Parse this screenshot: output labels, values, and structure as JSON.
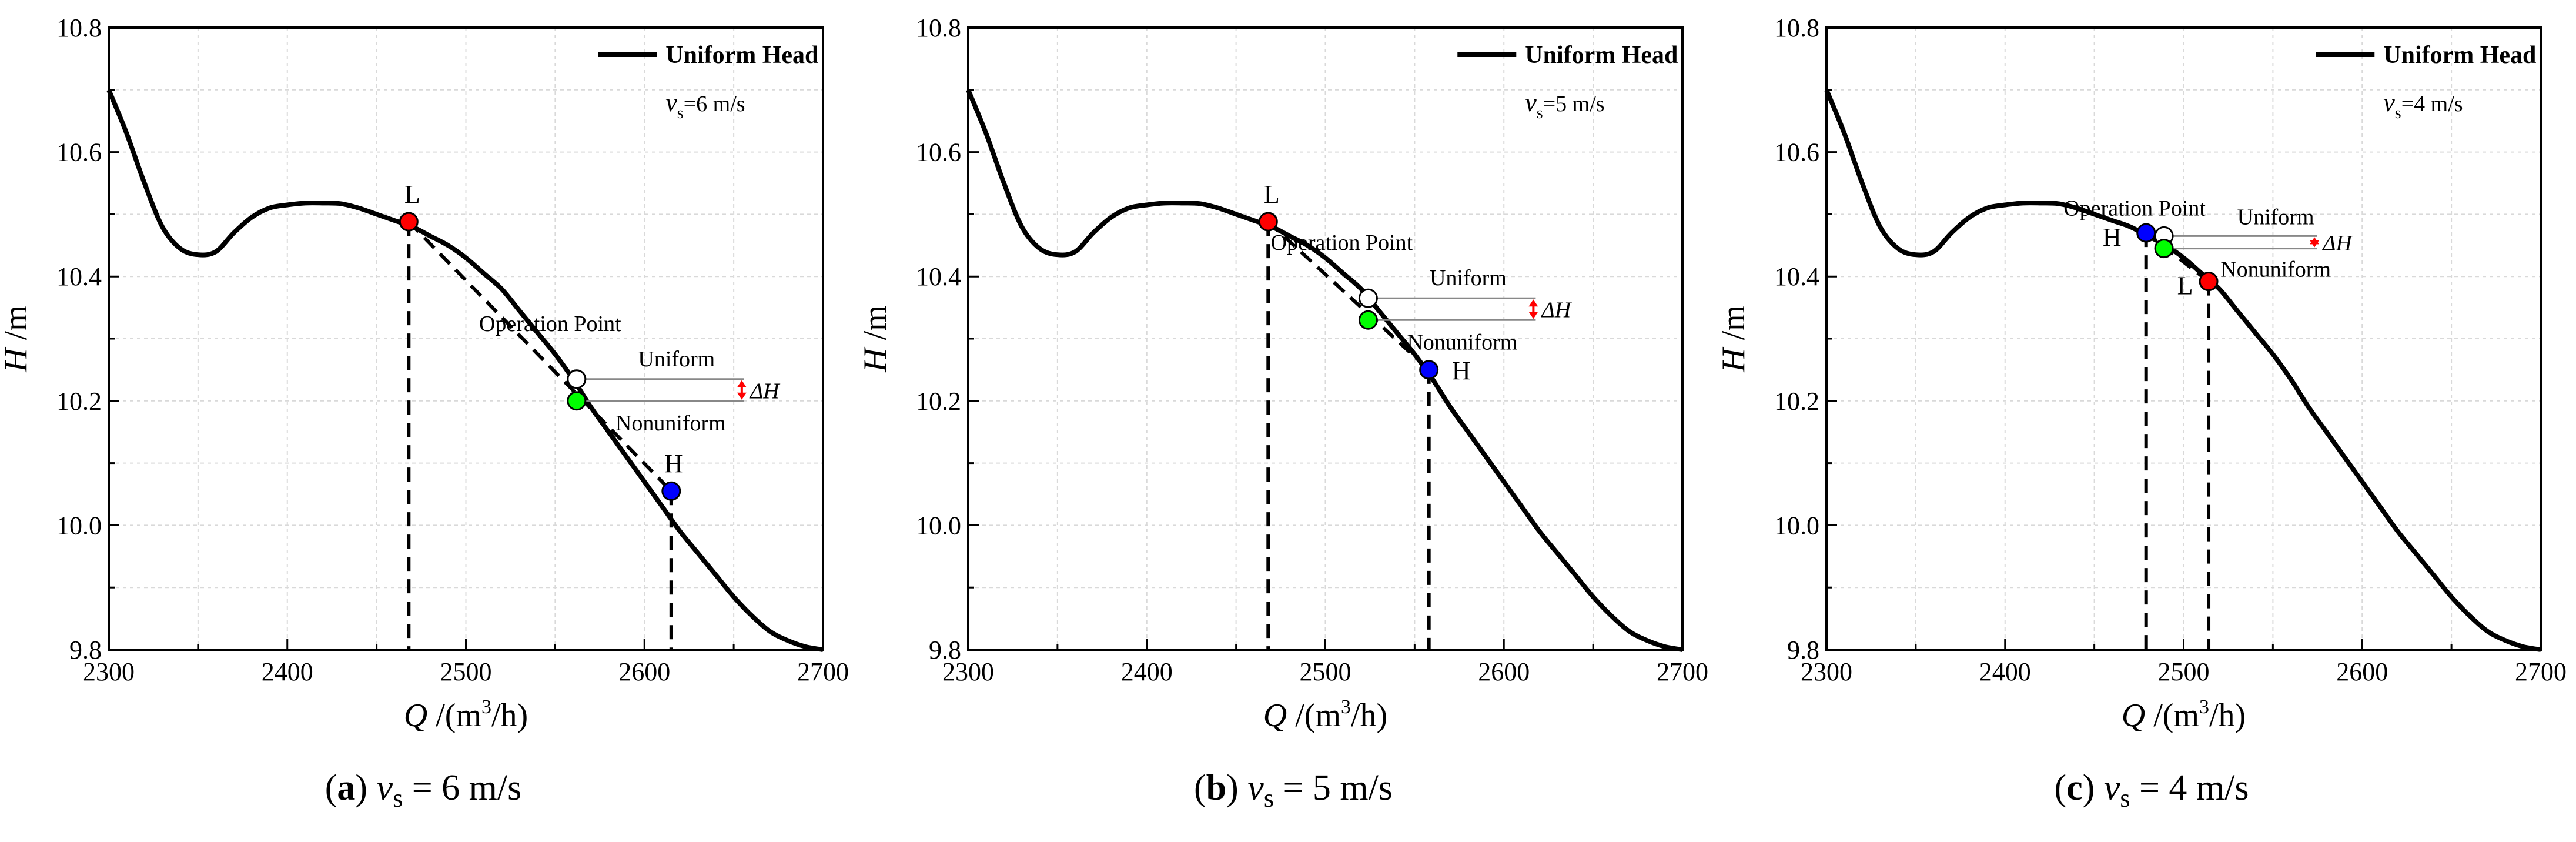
{
  "chart_data": [
    {
      "type": "line",
      "panel": "(a)",
      "title": "",
      "xlabel_main": "Q",
      "xlabel_unit_a": " /(m",
      "xlabel_unit_exp": "3",
      "xlabel_unit_b": "/h)",
      "ylabel_main": "H",
      "ylabel_unit": " /m",
      "xlim": [
        2300,
        2700
      ],
      "ylim": [
        9.8,
        10.8
      ],
      "xticks": [
        2300,
        2400,
        2500,
        2600,
        2700
      ],
      "yticks": [
        9.8,
        10.0,
        10.2,
        10.4,
        10.6,
        10.8
      ],
      "ytick_labels": [
        "9.8",
        "10.0",
        "10.2",
        "10.4",
        "10.6",
        "10.8"
      ],
      "grid": true,
      "legend": {
        "label": "Uniform Head",
        "position": "top-right"
      },
      "speed_label": {
        "v": "v",
        "sub": "s",
        "rest": "=6 m/s"
      },
      "series": [
        {
          "name": "Uniform Head",
          "x": [
            2300,
            2310,
            2320,
            2330,
            2340,
            2350,
            2360,
            2370,
            2380,
            2390,
            2400,
            2410,
            2420,
            2430,
            2440,
            2450,
            2460,
            2470,
            2480,
            2490,
            2500,
            2510,
            2520,
            2530,
            2540,
            2550,
            2560,
            2570,
            2580,
            2590,
            2600,
            2610,
            2620,
            2630,
            2640,
            2650,
            2660,
            2670,
            2680,
            2690,
            2700
          ],
          "y": [
            10.7,
            10.63,
            10.55,
            10.48,
            10.445,
            10.435,
            10.44,
            10.47,
            10.495,
            10.51,
            10.515,
            10.518,
            10.518,
            10.517,
            10.51,
            10.5,
            10.49,
            10.48,
            10.465,
            10.45,
            10.43,
            10.405,
            10.38,
            10.345,
            10.31,
            10.275,
            10.235,
            10.19,
            10.15,
            10.11,
            10.07,
            10.03,
            9.99,
            9.955,
            9.92,
            9.885,
            9.855,
            9.83,
            9.815,
            9.805,
            9.8
          ]
        }
      ],
      "points": [
        {
          "label": "L",
          "x": 2468,
          "y": 10.488,
          "color": "#ff0000"
        },
        {
          "label": "H",
          "x": 2615,
          "y": 10.055,
          "color": "#0000ff"
        },
        {
          "label": "Operation Point",
          "x": 2562,
          "y": 10.235,
          "color": "#ffffff"
        },
        {
          "label": "",
          "x": 2562,
          "y": 10.2,
          "color": "#00ff00"
        }
      ],
      "annotations": {
        "operation_point": "Operation Point",
        "uniform": "Uniform",
        "nonuniform": "Nonuniform",
        "delta_h": "ΔH"
      }
    },
    {
      "type": "line",
      "panel": "(b)",
      "title": "",
      "xlabel_main": "Q",
      "xlabel_unit_a": " /(m",
      "xlabel_unit_exp": "3",
      "xlabel_unit_b": "/h)",
      "ylabel_main": "H",
      "ylabel_unit": " /m",
      "xlim": [
        2300,
        2700
      ],
      "ylim": [
        9.8,
        10.8
      ],
      "xticks": [
        2300,
        2400,
        2500,
        2600,
        2700
      ],
      "yticks": [
        9.8,
        10.0,
        10.2,
        10.4,
        10.6,
        10.8
      ],
      "ytick_labels": [
        "9.8",
        "10.0",
        "10.2",
        "10.4",
        "10.6",
        "10.8"
      ],
      "grid": true,
      "legend": {
        "label": "Uniform Head",
        "position": "top-right"
      },
      "speed_label": {
        "v": "v",
        "sub": "s",
        "rest": "=5 m/s"
      },
      "series": [
        {
          "name": "Uniform Head",
          "x": [
            2300,
            2310,
            2320,
            2330,
            2340,
            2350,
            2360,
            2370,
            2380,
            2390,
            2400,
            2410,
            2420,
            2430,
            2440,
            2450,
            2460,
            2470,
            2480,
            2490,
            2500,
            2510,
            2520,
            2530,
            2540,
            2550,
            2560,
            2570,
            2580,
            2590,
            2600,
            2610,
            2620,
            2630,
            2640,
            2650,
            2660,
            2670,
            2680,
            2690,
            2700
          ],
          "y": [
            10.7,
            10.63,
            10.55,
            10.48,
            10.445,
            10.435,
            10.44,
            10.47,
            10.495,
            10.51,
            10.515,
            10.518,
            10.518,
            10.517,
            10.51,
            10.5,
            10.49,
            10.48,
            10.465,
            10.45,
            10.43,
            10.405,
            10.38,
            10.345,
            10.31,
            10.275,
            10.235,
            10.19,
            10.15,
            10.11,
            10.07,
            10.03,
            9.99,
            9.955,
            9.92,
            9.885,
            9.855,
            9.83,
            9.815,
            9.805,
            9.8
          ]
        }
      ],
      "points": [
        {
          "label": "L",
          "x": 2468,
          "y": 10.488,
          "color": "#ff0000"
        },
        {
          "label": "H",
          "x": 2558,
          "y": 10.25,
          "color": "#0000ff"
        },
        {
          "label": "Operation Point",
          "x": 2524,
          "y": 10.365,
          "color": "#ffffff"
        },
        {
          "label": "",
          "x": 2524,
          "y": 10.33,
          "color": "#00ff00"
        }
      ],
      "annotations": {
        "operation_point": "Operation Point",
        "uniform": "Uniform",
        "nonuniform": "Nonuniform",
        "delta_h": "ΔH"
      }
    },
    {
      "type": "line",
      "panel": "(c)",
      "title": "",
      "xlabel_main": "Q",
      "xlabel_unit_a": " /(m",
      "xlabel_unit_exp": "3",
      "xlabel_unit_b": "/h)",
      "ylabel_main": "H",
      "ylabel_unit": " /m",
      "xlim": [
        2300,
        2700
      ],
      "ylim": [
        9.8,
        10.8
      ],
      "xticks": [
        2300,
        2400,
        2500,
        2600,
        2700
      ],
      "yticks": [
        9.8,
        10.0,
        10.2,
        10.4,
        10.6,
        10.8
      ],
      "ytick_labels": [
        "9.8",
        "10.0",
        "10.2",
        "10.4",
        "10.6",
        "10.8"
      ],
      "grid": true,
      "legend": {
        "label": "Uniform Head",
        "position": "top-right"
      },
      "speed_label": {
        "v": "v",
        "sub": "s",
        "rest": "=4 m/s"
      },
      "series": [
        {
          "name": "Uniform Head",
          "x": [
            2300,
            2310,
            2320,
            2330,
            2340,
            2350,
            2360,
            2370,
            2380,
            2390,
            2400,
            2410,
            2420,
            2430,
            2440,
            2450,
            2460,
            2470,
            2480,
            2490,
            2500,
            2510,
            2520,
            2530,
            2540,
            2550,
            2560,
            2570,
            2580,
            2590,
            2600,
            2610,
            2620,
            2630,
            2640,
            2650,
            2660,
            2670,
            2680,
            2690,
            2700
          ],
          "y": [
            10.7,
            10.63,
            10.55,
            10.48,
            10.445,
            10.435,
            10.44,
            10.47,
            10.495,
            10.51,
            10.515,
            10.518,
            10.518,
            10.517,
            10.51,
            10.5,
            10.49,
            10.48,
            10.465,
            10.45,
            10.43,
            10.405,
            10.38,
            10.345,
            10.31,
            10.275,
            10.235,
            10.19,
            10.15,
            10.11,
            10.07,
            10.03,
            9.99,
            9.955,
            9.92,
            9.885,
            9.855,
            9.83,
            9.815,
            9.805,
            9.8
          ]
        }
      ],
      "points": [
        {
          "label": "L",
          "x": 2514,
          "y": 10.392,
          "color": "#ff0000"
        },
        {
          "label": "H",
          "x": 2479,
          "y": 10.47,
          "color": "#0000ff"
        },
        {
          "label": "Operation Point",
          "x": 2489,
          "y": 10.465,
          "color": "#ffffff"
        },
        {
          "label": "",
          "x": 2489,
          "y": 10.445,
          "color": "#00ff00"
        }
      ],
      "annotations": {
        "operation_point": "Operation Point",
        "uniform": "Uniform",
        "nonuniform": "Nonuniform",
        "delta_h": "ΔH"
      }
    }
  ],
  "captions": [
    {
      "panel": "(a)",
      "v": "v",
      "sub": "s",
      "rest": " = 6 m/s"
    },
    {
      "panel": "(b)",
      "v": "v",
      "sub": "s",
      "rest": " = 5 m/s"
    },
    {
      "panel": "(c)",
      "v": "v",
      "sub": "s",
      "rest": " = 4 m/s"
    }
  ],
  "colors": {
    "curve": "#000000",
    "grid": "#d9d9d9",
    "delta_arrow": "#ff0000"
  }
}
